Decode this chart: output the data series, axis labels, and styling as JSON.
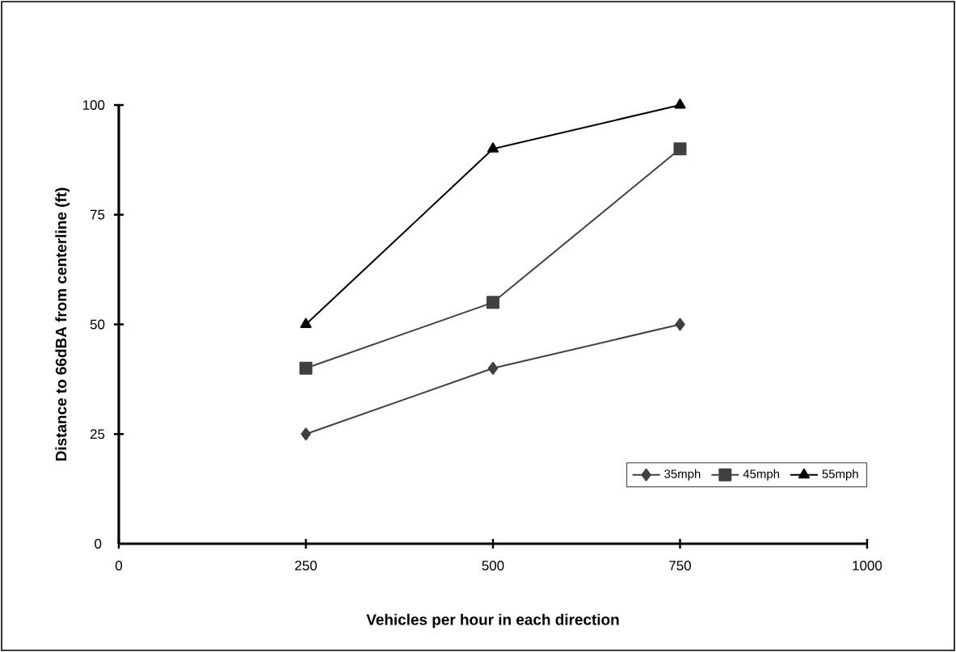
{
  "chart_data": {
    "type": "line",
    "xlabel": "Vehicles per hour in each direction",
    "ylabel": "Distance to 66dBA from centerline (ft)",
    "x": [
      250,
      500,
      750
    ],
    "series": [
      {
        "name": "35mph",
        "color": "#404040",
        "marker": "diamond",
        "values": [
          25,
          40,
          50
        ]
      },
      {
        "name": "45mph",
        "color": "#404040",
        "marker": "square",
        "values": [
          40,
          55,
          90
        ]
      },
      {
        "name": "55mph",
        "color": "#000000",
        "marker": "triangle",
        "values": [
          50,
          90,
          100
        ]
      }
    ],
    "xlim": [
      0,
      1000
    ],
    "ylim": [
      0,
      100
    ],
    "xticks": [
      0,
      250,
      500,
      750,
      1000
    ],
    "yticks": [
      0,
      25,
      50,
      75,
      100
    ],
    "grid": false,
    "legend": "bottom right",
    "line_style": "solid"
  }
}
